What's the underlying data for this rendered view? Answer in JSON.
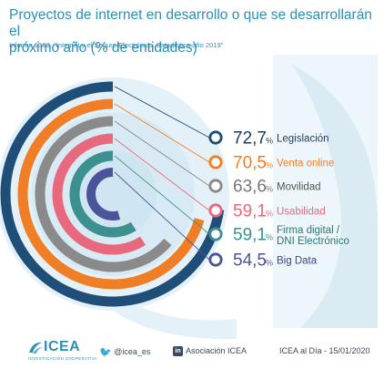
{
  "header": {
    "title_line1": "Proyectos de internet en desarrollo o que se desarrollarán el",
    "title_line2": "próximo año (% de entidades)",
    "subtitle": "Informe 1580: \"Internet y el Seguro Electrónico. Estadística año 2019\""
  },
  "chart_data": {
    "type": "bar",
    "categories": [
      "Legislación",
      "Venta online",
      "Movilidad",
      "Usabilidad",
      "Firma digital / DNI Electrónico",
      "Big Data"
    ],
    "values": [
      72.7,
      70.5,
      63.6,
      59.1,
      59.1,
      54.5
    ],
    "value_labels": [
      "72,7",
      "70,5",
      "63,6",
      "59,1",
      "59,1",
      "54,5"
    ],
    "label_lines": [
      [
        "Legislación"
      ],
      [
        "Venta online"
      ],
      [
        "Movilidad"
      ],
      [
        "Usabilidad"
      ],
      [
        "Firma digital /",
        "DNI Electrónico"
      ],
      [
        "Big Data"
      ]
    ],
    "unit": "%",
    "colors": [
      "#1f4e79",
      "#f07e26",
      "#8a8a8a",
      "#e8697d",
      "#3d9090",
      "#4a549a"
    ],
    "label_colors": [
      "#1f3a5a",
      "#f07e26",
      "#555555",
      "#e8697d",
      "#2f7575",
      "#3a4488"
    ],
    "value_colors": [
      "#1f3a5a",
      "#f07e26",
      "#777777",
      "#e8697d",
      "#3d9090",
      "#4a549a"
    ],
    "max": 100
  },
  "footer": {
    "logo": "ICEA",
    "logo_sub": "INVESTIGACIÓN COOPERATIVA",
    "twitter": "@icea_es",
    "linkedin": "Asociación ICEA",
    "date": "ICEA al Día - 15/01/2020"
  }
}
